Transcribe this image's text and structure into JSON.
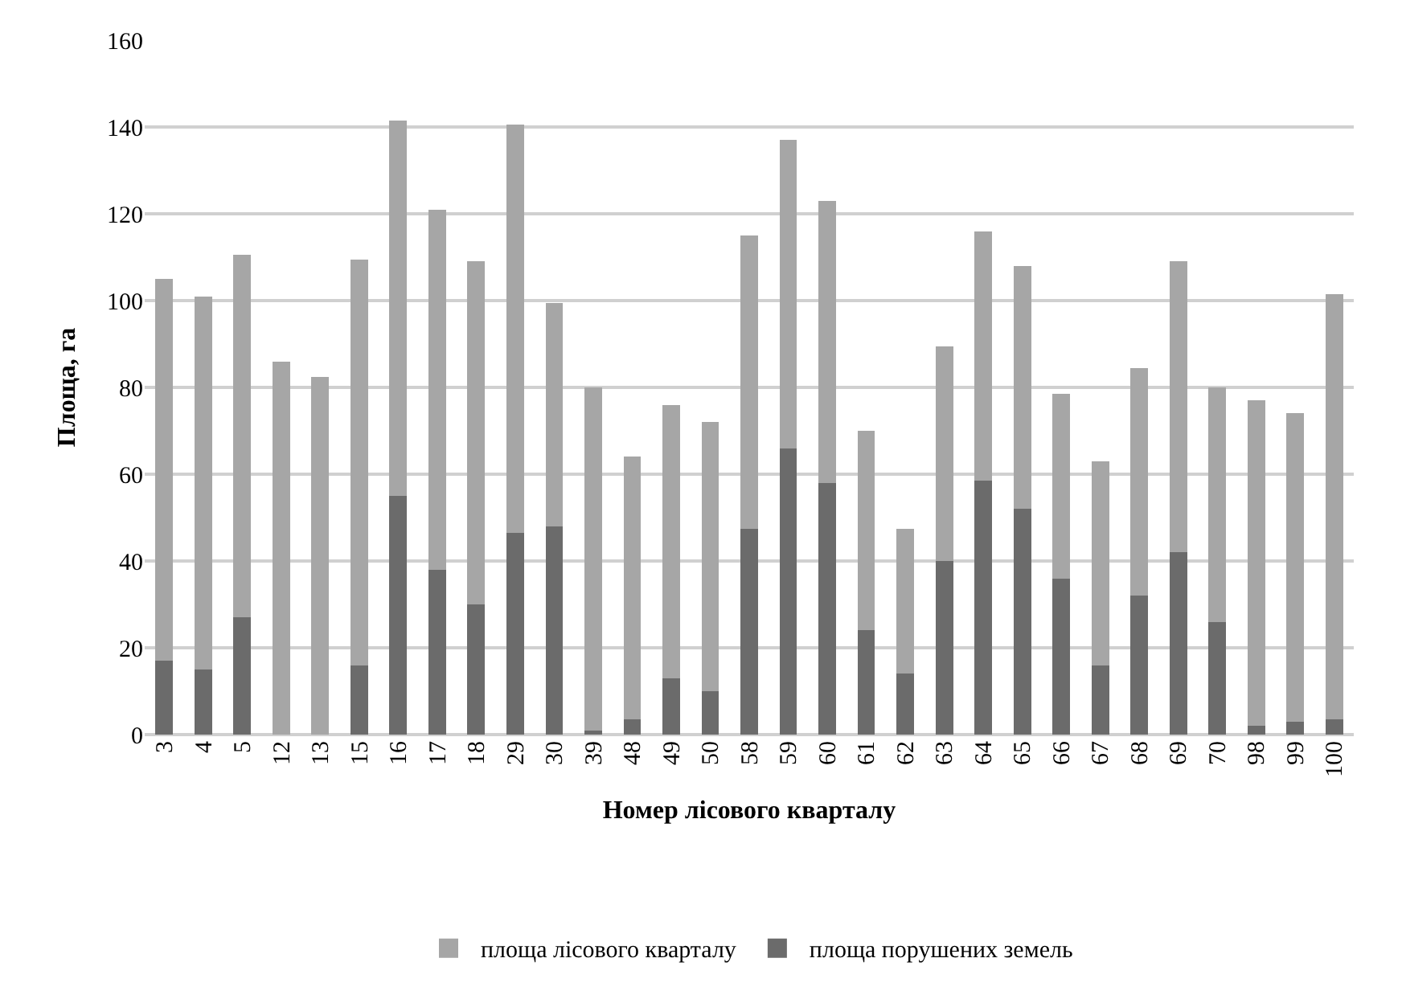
{
  "chart_data": {
    "type": "bar",
    "stacked": true,
    "xlabel": "Номер лісового кварталу",
    "ylabel": "Площа, га",
    "categories": [
      "3",
      "4",
      "5",
      "12",
      "13",
      "15",
      "16",
      "17",
      "18",
      "29",
      "30",
      "39",
      "48",
      "49",
      "50",
      "58",
      "59",
      "60",
      "61",
      "62",
      "63",
      "64",
      "65",
      "66",
      "67",
      "68",
      "69",
      "70",
      "98",
      "99",
      "100"
    ],
    "series": [
      {
        "name": "площа порушених земель",
        "color": "#6b6b6b",
        "values": [
          17,
          15,
          27,
          0,
          0,
          16,
          55,
          38,
          30,
          46.5,
          48,
          1,
          3.5,
          13,
          10,
          47.5,
          66,
          58,
          24,
          14,
          40,
          58.5,
          52,
          36,
          16,
          32,
          42,
          26,
          2,
          3,
          3.5
        ]
      },
      {
        "name": "площа лісового кварталу",
        "color": "#a6a6a6",
        "values": [
          88,
          86,
          83.5,
          86,
          82.5,
          93.5,
          86.5,
          83,
          79,
          94,
          51.5,
          79,
          60.5,
          63,
          62,
          67.5,
          71,
          65,
          46,
          33.5,
          49.5,
          57.5,
          56,
          42.5,
          47,
          52.5,
          67,
          54,
          75,
          71,
          98
        ]
      }
    ],
    "ylim": [
      0,
      160
    ],
    "yticks": [
      0,
      20,
      40,
      60,
      80,
      100,
      120,
      140,
      160
    ],
    "grid": "y",
    "legend": "bottom"
  }
}
